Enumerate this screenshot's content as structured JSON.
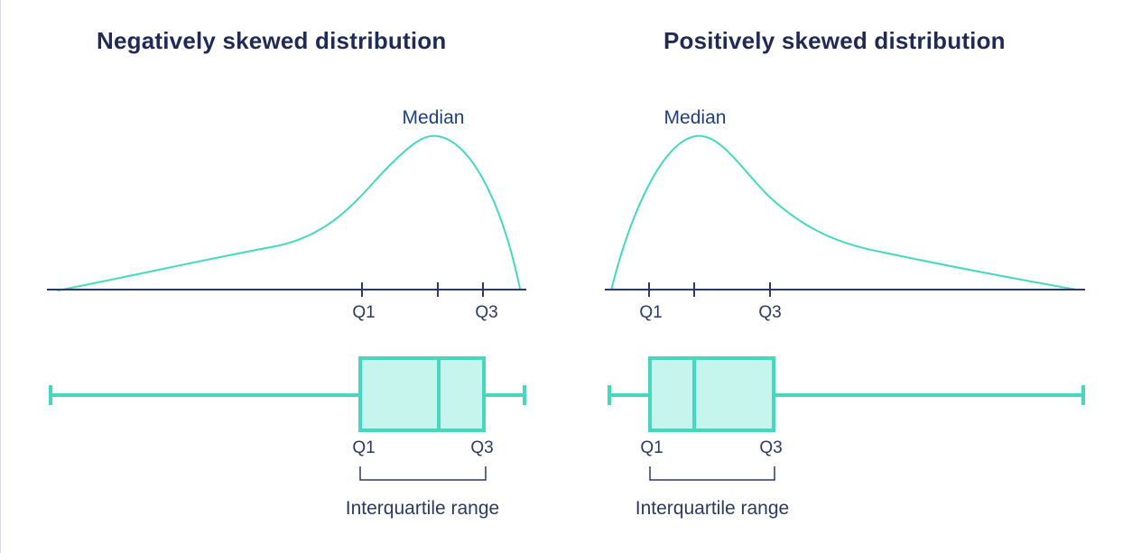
{
  "colors": {
    "curve": "#44d9bf",
    "box_fill": "#c6f5ee",
    "axis": "#2b3a63",
    "title": "#1f2a57",
    "label": "#2b3a63",
    "median_label": "#1f3f80"
  },
  "panels": [
    {
      "id": "negative",
      "title": "Negatively skewed distribution",
      "median_label": "Median",
      "axis_ticks": [
        "Q1",
        "",
        "Q3"
      ],
      "box_labels": [
        "Q1",
        "Q3"
      ],
      "range_label": "Interquartile range"
    },
    {
      "id": "positive",
      "title": "Positively skewed distribution",
      "median_label": "Median",
      "axis_ticks": [
        "Q1",
        "",
        "Q3"
      ],
      "box_labels": [
        "Q1",
        "Q3"
      ],
      "range_label": "Interquartile range"
    }
  ]
}
